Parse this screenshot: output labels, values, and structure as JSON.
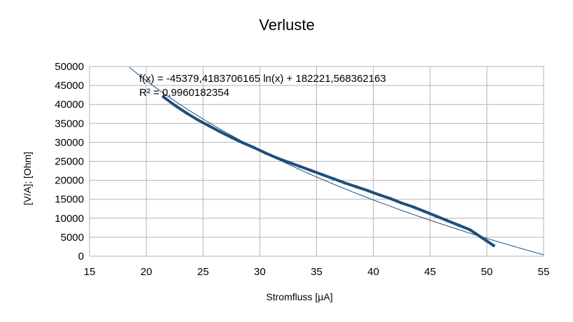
{
  "chart_data": {
    "type": "scatter",
    "title": "Verluste",
    "xlabel": "Stromfluss [µA]",
    "ylabel": "[V/A]; [Ohm]",
    "xlim": [
      15,
      55
    ],
    "ylim": [
      0,
      50000
    ],
    "x_ticks": [
      15,
      20,
      25,
      30,
      35,
      40,
      45,
      50,
      55
    ],
    "y_ticks": [
      0,
      5000,
      10000,
      15000,
      20000,
      25000,
      30000,
      35000,
      40000,
      45000,
      50000
    ],
    "grid": true,
    "colors": {
      "series": "#1f4e79",
      "grid": "#b3b3b3"
    },
    "series": [
      {
        "kind": "measured",
        "x": [
          21.5,
          22.5,
          23.5,
          24.5,
          25.5,
          26.5,
          27.5,
          28.5,
          29.5,
          30.5,
          31.5,
          32.5,
          33.5,
          34.5,
          35.5,
          36.5,
          37.5,
          38.5,
          39.5,
          40.5,
          41.5,
          42.5,
          43.5,
          44.5,
          45.5,
          46.5,
          47.5,
          48.5,
          49.0,
          49.5,
          50.0,
          50.6
        ],
        "y": [
          42000,
          39800,
          37800,
          36000,
          34400,
          32800,
          31300,
          29900,
          28600,
          27200,
          25900,
          24800,
          23700,
          22600,
          21500,
          20400,
          19300,
          18300,
          17300,
          16200,
          15200,
          14000,
          13000,
          11800,
          10600,
          9400,
          8200,
          7000,
          6000,
          5000,
          4000,
          2800
        ]
      }
    ],
    "trendline": {
      "kind": "logarithmic",
      "a": -45379.4183706165,
      "b": 182221.568362163,
      "x_range": [
        18.5,
        55
      ]
    },
    "annotations": {
      "equation": "f(x) = -45379,4183706165 ln(x) + 182221,568362163",
      "r_squared": "R² = 0,9960182354"
    }
  }
}
